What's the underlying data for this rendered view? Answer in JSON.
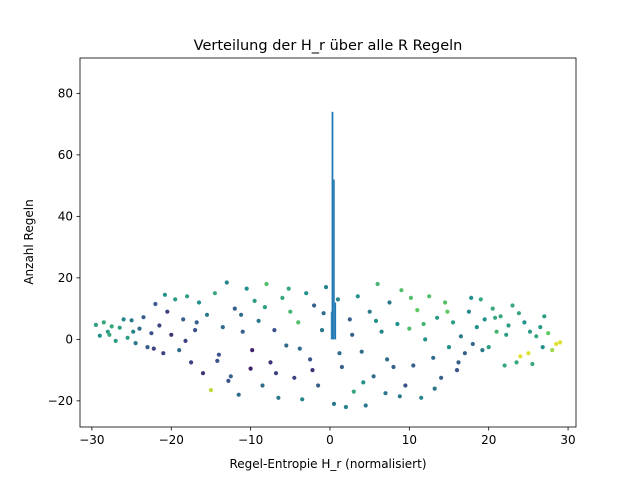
{
  "chart_data": {
    "type": "scatter",
    "title": "Verteilung der H_r über alle R Regeln",
    "xlabel": "Regel-Entropie H_r (normalisiert)",
    "ylabel": "Anzahl Regeln",
    "xlim": [
      -31.5,
      31.0
    ],
    "ylim": [
      -28.5,
      91.5
    ],
    "xticks": [
      -30,
      -20,
      -10,
      0,
      10,
      20,
      30
    ],
    "yticks": [
      -20,
      0,
      20,
      40,
      60,
      80
    ],
    "grid": false,
    "legend": "none",
    "histogram": {
      "color": "#1f77b4",
      "bars": [
        {
          "x0": 0.2,
          "x1": 0.42,
          "y": 74
        },
        {
          "x0": 0.42,
          "x1": 0.6,
          "y": 52
        },
        {
          "x0": 0.6,
          "x1": 0.78,
          "y": 12
        },
        {
          "x0": 0.1,
          "x1": 0.2,
          "y": 9
        }
      ]
    },
    "scatter": {
      "colormap": [
        "#440154",
        "#3b528b",
        "#21918c",
        "#5ec962",
        "#fde725"
      ],
      "points": [
        [
          -29.5,
          4.7,
          0.55
        ],
        [
          -29,
          1.2,
          0.5
        ],
        [
          -28.5,
          5.5,
          0.6
        ],
        [
          -28,
          2.5,
          0.55
        ],
        [
          -27.5,
          4.2,
          0.6
        ],
        [
          -27,
          -0.5,
          0.55
        ],
        [
          -26.5,
          3.8,
          0.55
        ],
        [
          -26,
          6.5,
          0.45
        ],
        [
          -25.5,
          0.5,
          0.55
        ],
        [
          -25,
          6.2,
          0.4
        ],
        [
          -24.5,
          -1.2,
          0.4
        ],
        [
          -24,
          3.5,
          0.35
        ],
        [
          -23.5,
          7.2,
          0.3
        ],
        [
          -23,
          -2.5,
          0.3
        ],
        [
          -22.5,
          2,
          0.25
        ],
        [
          -22,
          11.5,
          0.3
        ],
        [
          -21.5,
          4.5,
          0.2
        ],
        [
          -21,
          -4.5,
          0.2
        ],
        [
          -20.5,
          9,
          0.2
        ],
        [
          -20,
          1.5,
          0.15
        ],
        [
          -19.5,
          13,
          0.55
        ],
        [
          -19,
          -3.5,
          0.35
        ],
        [
          -18.5,
          6.5,
          0.3
        ],
        [
          -18,
          14,
          0.55
        ],
        [
          -17.5,
          -7.5,
          0.2
        ],
        [
          -17,
          3,
          0.25
        ],
        [
          -16.5,
          12,
          0.5
        ],
        [
          -16,
          -11,
          0.15
        ],
        [
          -15.5,
          8,
          0.4
        ],
        [
          -15,
          -16.5,
          0.9
        ],
        [
          -14.5,
          15,
          0.6
        ],
        [
          -14,
          -5,
          0.25
        ],
        [
          -13.5,
          4,
          0.35
        ],
        [
          -13,
          18.5,
          0.45
        ],
        [
          -12.5,
          -12,
          0.3
        ],
        [
          -12,
          10,
          0.3
        ],
        [
          -11.5,
          -18,
          0.35
        ],
        [
          -11,
          2.5,
          0.3
        ],
        [
          -10.5,
          16.5,
          0.5
        ],
        [
          -10,
          -9.5,
          0.1
        ],
        [
          -9.5,
          12.5,
          0.55
        ],
        [
          -9,
          6,
          0.4
        ],
        [
          -8.5,
          -15,
          0.35
        ],
        [
          -8,
          18,
          0.7
        ],
        [
          -7.5,
          -7.5,
          0.15
        ],
        [
          -7,
          3,
          0.25
        ],
        [
          -6.5,
          -19,
          0.4
        ],
        [
          -6,
          13.5,
          0.6
        ],
        [
          -5.5,
          -2,
          0.35
        ],
        [
          -5,
          9,
          0.65
        ],
        [
          -4.5,
          -12.5,
          0.2
        ],
        [
          -4,
          5.5,
          0.7
        ],
        [
          -3.5,
          -19.5,
          0.45
        ],
        [
          -3,
          15,
          0.5
        ],
        [
          -2.5,
          -6.5,
          0.25
        ],
        [
          -2,
          11,
          0.3
        ],
        [
          -1.5,
          -15,
          0.3
        ],
        [
          -1,
          3,
          0.4
        ],
        [
          -0.5,
          17,
          0.45
        ],
        [
          0.5,
          -21,
          0.4
        ],
        [
          1,
          13,
          0.45
        ],
        [
          1.5,
          -9,
          0.3
        ],
        [
          2,
          -22,
          0.45
        ],
        [
          2.5,
          6.5,
          0.3
        ],
        [
          3,
          -17,
          0.6
        ],
        [
          3.5,
          14,
          0.5
        ],
        [
          4,
          -4,
          0.35
        ],
        [
          4.5,
          -21.5,
          0.4
        ],
        [
          5,
          9,
          0.4
        ],
        [
          5.5,
          -12,
          0.35
        ],
        [
          6,
          18,
          0.65
        ],
        [
          6.5,
          2.5,
          0.45
        ],
        [
          7,
          -17.5,
          0.4
        ],
        [
          7.5,
          12,
          0.4
        ],
        [
          8,
          -9,
          0.3
        ],
        [
          8.5,
          5,
          0.5
        ],
        [
          9,
          16,
          0.7
        ],
        [
          9.5,
          -15,
          0.25
        ],
        [
          10,
          3.5,
          0.7
        ],
        [
          10.5,
          -8.5,
          0.3
        ],
        [
          11,
          9.5,
          0.75
        ],
        [
          11.5,
          -19,
          0.45
        ],
        [
          12,
          0,
          0.5
        ],
        [
          12.5,
          14,
          0.7
        ],
        [
          13,
          -6,
          0.35
        ],
        [
          13.5,
          7,
          0.55
        ],
        [
          14,
          -12.5,
          0.3
        ],
        [
          14.5,
          12,
          0.7
        ],
        [
          15,
          -2.5,
          0.5
        ],
        [
          15.5,
          5.5,
          0.55
        ],
        [
          16,
          -10,
          0.25
        ],
        [
          16.5,
          1,
          0.4
        ],
        [
          17,
          -4.5,
          0.3
        ],
        [
          17.5,
          9,
          0.45
        ],
        [
          18,
          -1.5,
          0.35
        ],
        [
          18.5,
          4,
          0.5
        ],
        [
          19,
          13,
          0.6
        ],
        [
          19.5,
          6.5,
          0.5
        ],
        [
          20,
          -2.5,
          0.55
        ],
        [
          20.5,
          10,
          0.6
        ],
        [
          21,
          2.5,
          0.65
        ],
        [
          21.5,
          7.5,
          0.6
        ],
        [
          22,
          -8.5,
          0.6
        ],
        [
          22.5,
          4.5,
          0.55
        ],
        [
          23,
          11,
          0.6
        ],
        [
          23.5,
          -7.5,
          0.6
        ],
        [
          24,
          -5.5,
          0.95
        ],
        [
          24.5,
          5.5,
          0.5
        ],
        [
          25,
          -4.5,
          0.95
        ],
        [
          25.5,
          -8,
          0.6
        ],
        [
          26,
          1,
          0.6
        ],
        [
          26.5,
          4,
          0.55
        ],
        [
          27,
          7.5,
          0.55
        ],
        [
          27.5,
          2,
          0.75
        ],
        [
          28,
          -3.5,
          0.85
        ],
        [
          28.5,
          -1.5,
          0.95
        ],
        [
          29,
          -1,
          0.95
        ],
        [
          -27.8,
          1.5,
          0.6
        ],
        [
          -24.8,
          2.5,
          0.45
        ],
        [
          -22.2,
          -3,
          0.2
        ],
        [
          -20.8,
          14.5,
          0.5
        ],
        [
          -18.2,
          -0.5,
          0.2
        ],
        [
          -16.8,
          5.5,
          0.3
        ],
        [
          -14.2,
          -7,
          0.25
        ],
        [
          -12.8,
          -13.5,
          0.25
        ],
        [
          -11.2,
          8,
          0.35
        ],
        [
          -9.8,
          -3.5,
          0.1
        ],
        [
          -8.2,
          10.5,
          0.55
        ],
        [
          -6.8,
          -11,
          0.2
        ],
        [
          -5.2,
          16.5,
          0.6
        ],
        [
          -3.8,
          -3,
          0.35
        ],
        [
          -2.2,
          -10,
          0.15
        ],
        [
          -0.8,
          8.5,
          0.35
        ],
        [
          1.2,
          -4.5,
          0.35
        ],
        [
          2.8,
          1.5,
          0.3
        ],
        [
          4.2,
          -14,
          0.5
        ],
        [
          5.8,
          6,
          0.5
        ],
        [
          7.2,
          -6.5,
          0.35
        ],
        [
          8.8,
          -18.5,
          0.4
        ],
        [
          10.2,
          13.5,
          0.7
        ],
        [
          11.8,
          5,
          0.65
        ],
        [
          13.2,
          -16,
          0.4
        ],
        [
          14.8,
          9,
          0.75
        ],
        [
          16.2,
          -7.5,
          0.3
        ],
        [
          17.8,
          13.5,
          0.5
        ],
        [
          19.2,
          -3.5,
          0.4
        ],
        [
          20.8,
          7,
          0.6
        ],
        [
          22.2,
          1.5,
          0.55
        ],
        [
          23.8,
          8.5,
          0.6
        ],
        [
          25.2,
          2.5,
          0.55
        ],
        [
          26.8,
          -2.5,
          0.5
        ]
      ]
    }
  }
}
